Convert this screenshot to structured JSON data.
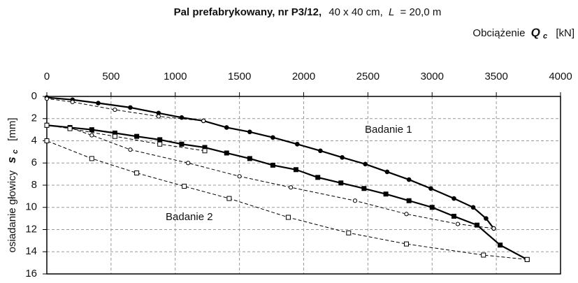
{
  "chart_data": {
    "type": "line",
    "title_parts": [
      "Pal prefabrykowany, nr P3/12,",
      "40 x 40 cm,",
      "L",
      "= 20,0 m"
    ],
    "x_label_parts": [
      "Obciążenie",
      "Q",
      "c",
      "[kN]"
    ],
    "y_label_parts": [
      "osiadanie głowicy",
      "s",
      "c",
      "[mm]"
    ],
    "xlim": [
      0,
      4000
    ],
    "xticks": [
      0,
      500,
      1000,
      1500,
      2000,
      2500,
      3000,
      3500,
      4000
    ],
    "ylim": [
      0,
      16
    ],
    "yticks": [
      0,
      2,
      4,
      6,
      8,
      10,
      12,
      14,
      16
    ],
    "y_inverted": true,
    "x_axis_top": true,
    "grid": true,
    "series": [
      {
        "color": "#000000",
        "dash": false,
        "marker": "circle",
        "filled": true,
        "x": [
          0,
          200,
          400,
          650,
          870,
          1050,
          1220,
          1400,
          1580,
          1760,
          1950,
          2130,
          2300,
          2480,
          2650,
          2820,
          2990,
          3170,
          3320,
          3420,
          3480
        ],
        "values": [
          0.1,
          0.3,
          0.6,
          1.0,
          1.5,
          1.9,
          2.2,
          2.8,
          3.2,
          3.7,
          4.3,
          4.9,
          5.5,
          6.1,
          6.8,
          7.5,
          8.3,
          9.2,
          10.0,
          11.0,
          11.9
        ]
      },
      {
        "color": "#000000",
        "dash": true,
        "marker": "circle",
        "filled": false,
        "x": [
          1220,
          870,
          530,
          200,
          0
        ],
        "values": [
          2.2,
          1.8,
          1.2,
          0.5,
          0.2
        ]
      },
      {
        "color": "#000000",
        "dash": true,
        "marker": "circle",
        "filled": false,
        "x": [
          3480,
          3200,
          2800,
          2400,
          1900,
          1500,
          1100,
          650,
          350,
          175,
          0
        ],
        "values": [
          11.9,
          11.5,
          10.6,
          9.4,
          8.2,
          7.2,
          6.0,
          4.8,
          3.5,
          2.8,
          2.6
        ]
      },
      {
        "color": "#000000",
        "dash": false,
        "marker": "square",
        "filled": true,
        "x": [
          0,
          180,
          350,
          530,
          700,
          880,
          1050,
          1230,
          1400,
          1580,
          1760,
          1940,
          2110,
          2290,
          2470,
          2640,
          2820,
          3000,
          3170,
          3350,
          3530,
          3740
        ],
        "values": [
          2.6,
          2.8,
          3.0,
          3.3,
          3.6,
          3.9,
          4.3,
          4.6,
          5.1,
          5.6,
          6.2,
          6.6,
          7.3,
          7.8,
          8.3,
          8.8,
          9.4,
          10.0,
          10.8,
          11.6,
          13.4,
          14.7
        ]
      },
      {
        "color": "#000000",
        "dash": true,
        "marker": "square",
        "filled": false,
        "x": [
          1230,
          880,
          530,
          180,
          0
        ],
        "values": [
          4.9,
          4.3,
          3.6,
          2.9,
          2.6
        ]
      },
      {
        "color": "#000000",
        "dash": true,
        "marker": "square",
        "filled": false,
        "x": [
          3740,
          3400,
          2800,
          2350,
          1880,
          1420,
          1070,
          700,
          350,
          0
        ],
        "values": [
          14.7,
          14.3,
          13.3,
          12.3,
          10.9,
          9.2,
          8.1,
          6.9,
          5.6,
          4.0
        ]
      }
    ],
    "annotations": [
      "Badanie 1",
      "Badanie 2"
    ]
  }
}
